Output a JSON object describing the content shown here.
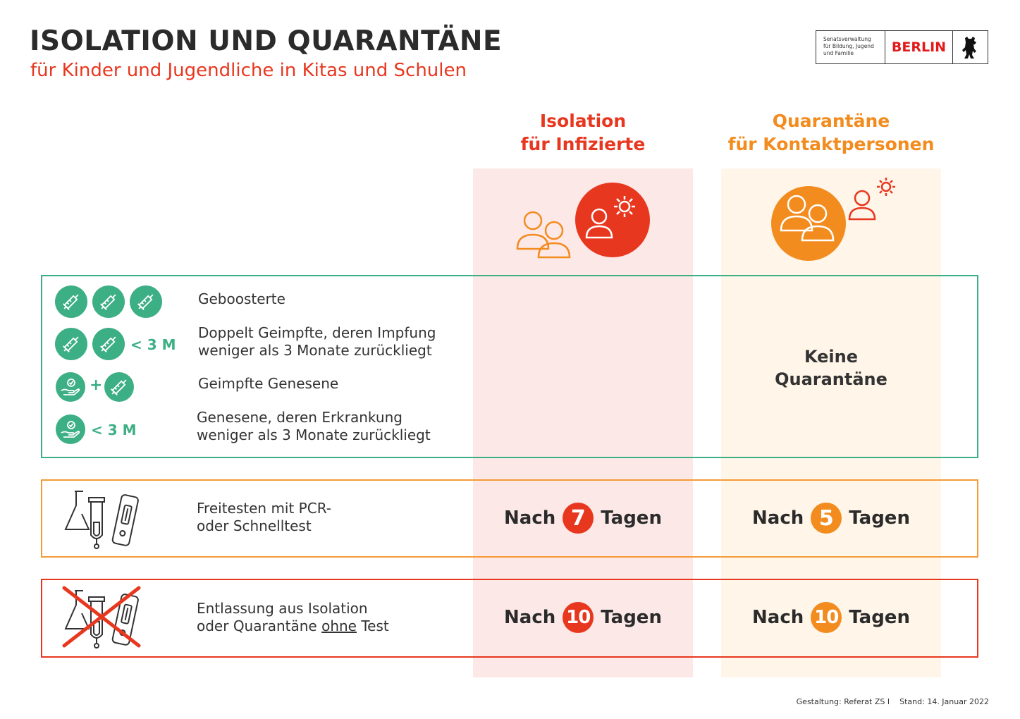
{
  "header": {
    "title": "ISOLATION UND QUARANTÄNE",
    "subtitle": "für Kinder und Jugendliche in Kitas und Schulen"
  },
  "logo": {
    "lines": [
      "Senatsverwaltung",
      "für Bildung, Jugend",
      "und Familie"
    ],
    "city": "BERLIN"
  },
  "columns": {
    "isolation": {
      "line1": "Isolation",
      "line2": "für Infizierte"
    },
    "quarantine": {
      "line1": "Quarantäne",
      "line2": "für Kontaktpersonen"
    }
  },
  "groups": {
    "boosted": "Geboosterte",
    "double_vaccinated": {
      "line1": "Doppelt Geimpfte, deren Impfung",
      "line2": "weniger als 3 Monate zurückliegt",
      "badge": "< 3 M"
    },
    "vaccinated_recovered": {
      "label": "Geimpfte Genesene",
      "plus": "+"
    },
    "recovered": {
      "line1": "Genesene, deren Erkrankung",
      "line2": "weniger als 3 Monate zurückliegt",
      "badge": "< 3 M"
    },
    "no_quarantine": {
      "line1": "Keine",
      "line2": "Quarantäne"
    }
  },
  "test_release": {
    "line1": "Freitesten mit PCR-",
    "line2": "oder Schnelltest",
    "isolation": {
      "pre": "Nach",
      "days": "7",
      "post": "Tagen"
    },
    "quarantine": {
      "pre": "Nach",
      "days": "5",
      "post": "Tagen"
    }
  },
  "no_test_release": {
    "line1": "Entlassung aus Isolation",
    "line2_pre": "oder Quarantäne",
    "line2_underlined": "ohne",
    "line2_post": "Test",
    "isolation": {
      "pre": "Nach",
      "days": "10",
      "post": "Tagen"
    },
    "quarantine": {
      "pre": "Nach",
      "days": "10",
      "post": "Tagen"
    }
  },
  "footer": {
    "credit": "Gestaltung: Referat ZS I",
    "date": "Stand: 14. Januar 2022"
  },
  "colors": {
    "red": "#e8371f",
    "orange": "#f28c1f",
    "green": "#3daf85",
    "red_bg": "#fde8e8",
    "orange_bg": "#fff5e9"
  }
}
